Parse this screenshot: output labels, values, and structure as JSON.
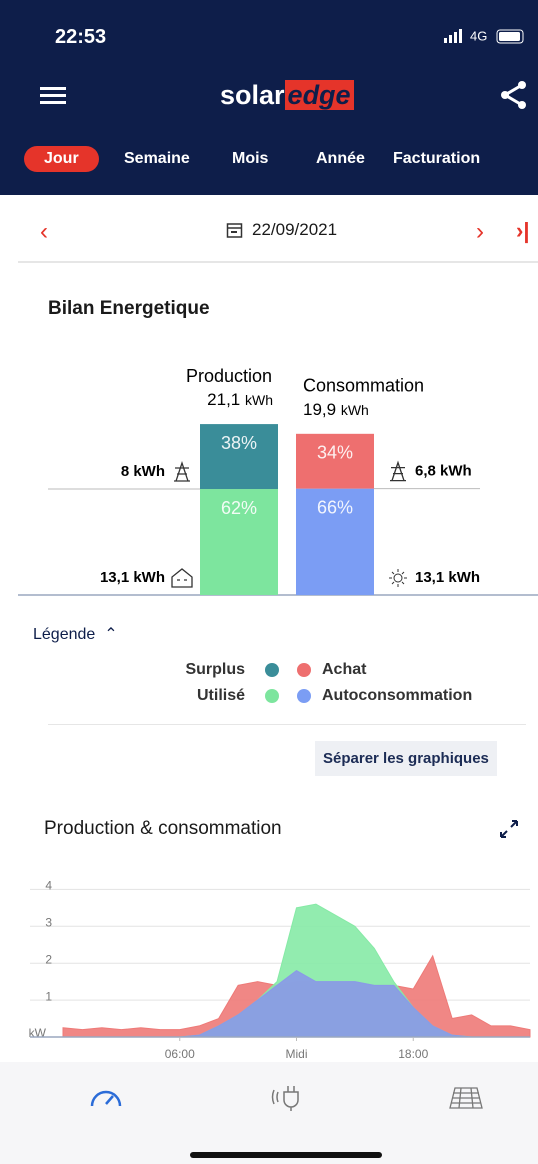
{
  "status_bar": {
    "time": "22:53",
    "network": "4G"
  },
  "header": {
    "logo_left": "solar",
    "logo_right": "edge"
  },
  "tabs": [
    "Jour",
    "Semaine",
    "Mois",
    "Année",
    "Facturation"
  ],
  "active_tab": 0,
  "date": "22/09/2021",
  "energy_balance": {
    "title": "Bilan Energetique",
    "unit": "kWh",
    "production": {
      "label": "Production",
      "total": {
        "value": 21.1,
        "label": "21,1"
      },
      "segments": [
        {
          "value": 38,
          "label": "38%",
          "color": "#3a8d99"
        },
        {
          "value": 62,
          "label": "62%",
          "color": "#7de59e"
        }
      ],
      "side_labels": [
        "8 kWh",
        "13,1 kWh"
      ]
    },
    "consumption": {
      "label": "Consommation",
      "total": {
        "value": 19.9,
        "label": "19,9"
      },
      "segments": [
        {
          "value": 34,
          "label": "34%",
          "color": "#ee6f6f"
        },
        {
          "value": 66,
          "label": "66%",
          "color": "#7b9df4"
        }
      ],
      "side_labels": [
        "6,8 kWh",
        "13,1 kWh"
      ]
    }
  },
  "legend": {
    "title": "Légende",
    "items": [
      {
        "label": "Surplus",
        "color": "#3a8d99"
      },
      {
        "label": "Achat",
        "color": "#ee6f6f"
      },
      {
        "label": "Utilisé",
        "color": "#7de59e"
      },
      {
        "label": "Autoconsommation",
        "color": "#7b9df4"
      }
    ]
  },
  "button": "Séparer les graphiques",
  "chart_data": {
    "type": "area",
    "title": "Production & consommation",
    "x": [
      0,
      1,
      2,
      3,
      4,
      5,
      6,
      7,
      8,
      9,
      10,
      11,
      12,
      13,
      14,
      15,
      16,
      17,
      18,
      19,
      20,
      21,
      22,
      23,
      24
    ],
    "series": [
      {
        "color": "#ee7a78",
        "values": [
          0.25,
          0.2,
          0.25,
          0.2,
          0.25,
          0.2,
          0.2,
          0.3,
          0.5,
          1.4,
          1.5,
          1.4,
          1.5,
          1.5,
          1.5,
          1.5,
          1.4,
          1.4,
          1.3,
          2.2,
          0.5,
          0.6,
          0.3,
          0.3,
          0.2
        ]
      },
      {
        "color": "#86eaa6",
        "values": [
          0,
          0,
          0,
          0,
          0,
          0,
          0,
          0.05,
          0.3,
          0.6,
          1.0,
          1.5,
          3.5,
          3.6,
          3.3,
          3.0,
          2.4,
          1.5,
          0.8,
          0.3,
          0.05,
          0,
          0,
          0,
          0
        ]
      },
      {
        "color": "#8a99e8",
        "values": [
          0,
          0,
          0,
          0,
          0,
          0,
          0,
          0.05,
          0.3,
          0.6,
          1.0,
          1.4,
          1.8,
          1.5,
          1.5,
          1.5,
          1.4,
          1.4,
          0.8,
          0.3,
          0.05,
          0,
          0,
          0,
          0
        ]
      }
    ],
    "xlim": [
      0,
      24
    ],
    "ylim": [
      0,
      4.2
    ],
    "xticks": [
      {
        "value": 6,
        "label": "06:00"
      },
      {
        "value": 12,
        "label": "Midi"
      },
      {
        "value": 18,
        "label": "18:00"
      }
    ],
    "yticks": [
      {
        "value": 0,
        "label": "kW"
      },
      1,
      2,
      3,
      4
    ],
    "grid": true
  }
}
